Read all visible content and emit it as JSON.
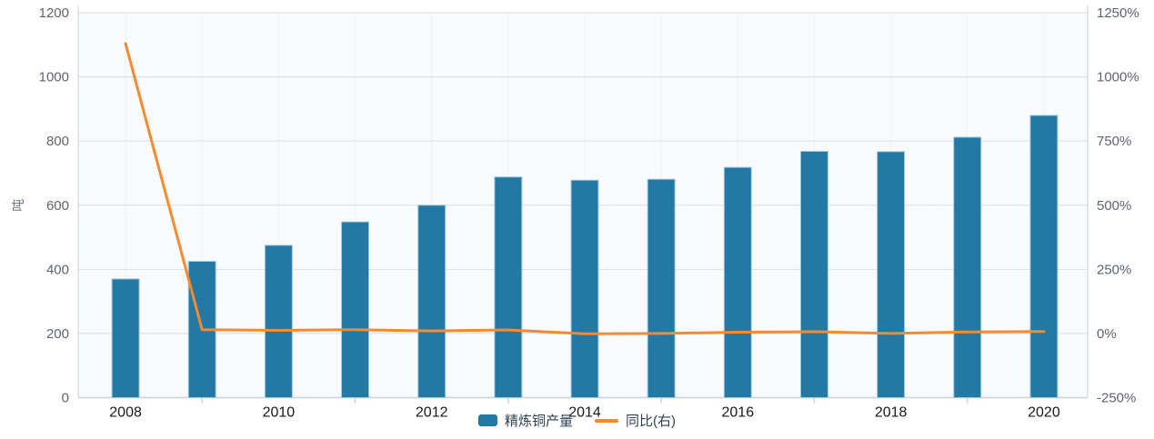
{
  "chart_data": {
    "type": "bar+line combo",
    "categories": [
      "2008",
      "2009",
      "2010",
      "2011",
      "2012",
      "2013",
      "2014",
      "2015",
      "2016",
      "2017",
      "2018",
      "2019",
      "2020"
    ],
    "x_axis": {
      "labeled_categories": [
        "2008",
        "2010",
        "2012",
        "2014",
        "2016",
        "2018",
        "2020"
      ],
      "labeled_indices": [
        0,
        2,
        4,
        6,
        8,
        10,
        12
      ],
      "tick_indices": [
        1,
        3,
        5,
        7,
        9,
        11
      ]
    },
    "series": [
      {
        "name": "精炼铜产量",
        "type": "bar",
        "axis": "left",
        "color": "#2478a4",
        "border_color": "#a5cbdf",
        "values": [
          370,
          425,
          475,
          548,
          600,
          688,
          678,
          681,
          718,
          768,
          767,
          812,
          880
        ]
      },
      {
        "name": "同比(右)",
        "type": "line",
        "axis": "right",
        "color": "#f58a2f",
        "values_percent": [
          1130,
          15,
          12,
          15,
          10,
          14,
          -1,
          0,
          5,
          7,
          0,
          6,
          8
        ]
      }
    ],
    "left_axis": {
      "unit_label": "吨",
      "min": 0,
      "max": 1200,
      "tick_values": [
        0,
        200,
        400,
        600,
        800,
        1000,
        1200
      ],
      "tick_labels": [
        "0",
        "200",
        "400",
        "600",
        "800",
        "1000",
        "1200"
      ]
    },
    "right_axis": {
      "min": -250,
      "max": 1250,
      "tick_values": [
        -250,
        0,
        250,
        500,
        750,
        1000,
        1250
      ],
      "tick_labels": [
        "-250%",
        "0%",
        "250%",
        "500%",
        "750%",
        "1000%",
        "1250%"
      ]
    },
    "legend": {
      "items": [
        {
          "label": "精炼铜产量",
          "marker": "bar-swatch"
        },
        {
          "label": "同比(右)",
          "marker": "line-swatch"
        }
      ]
    },
    "style": {
      "plot_bg": "#f9fafc",
      "grid_color": "#d9dce0",
      "axis_line_color": "#c6d3db",
      "faint_vline_color": "#eef2f6",
      "y_tick_text_color": "#5b656e",
      "x_tick_text_color": "#17191c",
      "unit_text_color": "#6f7a83"
    }
  }
}
